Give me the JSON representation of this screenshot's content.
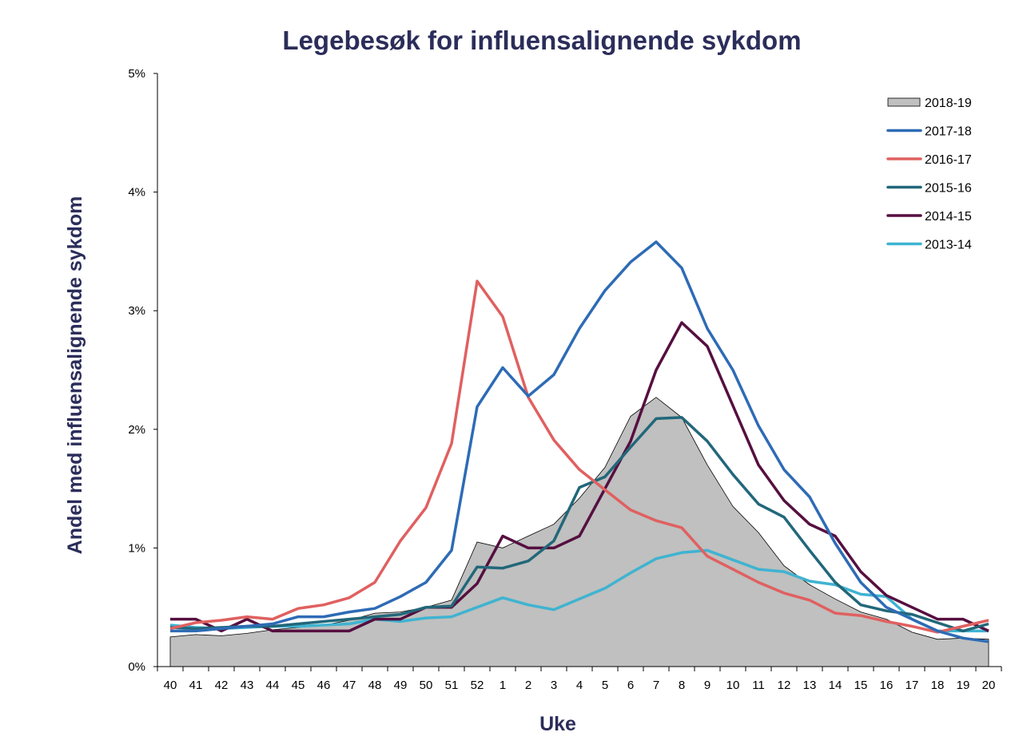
{
  "chart_data": {
    "type": "line",
    "title": "Legebesøk for influensalignende sykdom",
    "xlabel": "Uke",
    "ylabel": "Andel med influensalignende sykdom",
    "ylim": [
      0,
      5
    ],
    "yticks": [
      "0%",
      "1%",
      "2%",
      "3%",
      "4%",
      "5%"
    ],
    "grid": false,
    "legend_position": "top-right",
    "categories": [
      "40",
      "41",
      "42",
      "43",
      "44",
      "45",
      "46",
      "47",
      "48",
      "49",
      "50",
      "51",
      "52",
      "1",
      "2",
      "3",
      "4",
      "5",
      "6",
      "7",
      "8",
      "9",
      "10",
      "11",
      "12",
      "13",
      "14",
      "15",
      "16",
      "17",
      "18",
      "19",
      "20"
    ],
    "series": [
      {
        "name": "2018-19",
        "kind": "area",
        "color": "#bfc0bf",
        "values": [
          0.25,
          0.27,
          0.26,
          0.28,
          0.31,
          0.33,
          0.35,
          0.39,
          0.45,
          0.46,
          0.5,
          0.56,
          1.05,
          1.0,
          1.1,
          1.2,
          1.42,
          1.68,
          2.11,
          2.27,
          2.1,
          1.7,
          1.35,
          1.13,
          0.85,
          0.69,
          0.57,
          0.46,
          0.4,
          0.29,
          0.23,
          0.24,
          0.23
        ]
      },
      {
        "name": "2017-18",
        "kind": "line",
        "color": "#2e6bb5",
        "values": [
          0.3,
          0.3,
          0.32,
          0.34,
          0.36,
          0.42,
          0.42,
          0.46,
          0.49,
          0.59,
          0.71,
          0.98,
          2.19,
          2.52,
          2.28,
          2.46,
          2.85,
          3.17,
          3.41,
          3.58,
          3.36,
          2.85,
          2.5,
          2.03,
          1.66,
          1.43,
          1.04,
          0.71,
          0.5,
          0.4,
          0.3,
          0.24,
          0.21
        ]
      },
      {
        "name": "2016-17",
        "kind": "line",
        "color": "#e06060",
        "values": [
          0.32,
          0.37,
          0.39,
          0.42,
          0.4,
          0.49,
          0.52,
          0.58,
          0.71,
          1.06,
          1.34,
          1.88,
          3.25,
          2.95,
          2.27,
          1.91,
          1.66,
          1.49,
          1.32,
          1.23,
          1.17,
          0.93,
          0.82,
          0.71,
          0.62,
          0.56,
          0.45,
          0.43,
          0.38,
          0.34,
          0.29,
          0.34,
          0.39
        ]
      },
      {
        "name": "2015-16",
        "kind": "line",
        "color": "#22677a",
        "values": [
          0.33,
          0.32,
          0.33,
          0.34,
          0.34,
          0.36,
          0.38,
          0.4,
          0.42,
          0.44,
          0.5,
          0.51,
          0.84,
          0.83,
          0.89,
          1.06,
          1.51,
          1.6,
          1.85,
          2.09,
          2.1,
          1.9,
          1.62,
          1.37,
          1.26,
          0.98,
          0.71,
          0.52,
          0.47,
          0.44,
          0.37,
          0.3,
          0.36
        ]
      },
      {
        "name": "2014-15",
        "kind": "line",
        "color": "#560f40",
        "values": [
          0.4,
          0.4,
          0.3,
          0.4,
          0.3,
          0.3,
          0.3,
          0.3,
          0.4,
          0.4,
          0.5,
          0.5,
          0.7,
          1.1,
          1.0,
          1.0,
          1.1,
          1.5,
          1.9,
          2.5,
          2.9,
          2.7,
          2.2,
          1.7,
          1.4,
          1.2,
          1.1,
          0.8,
          0.6,
          0.5,
          0.4,
          0.4,
          0.3
        ]
      },
      {
        "name": "2013-14",
        "kind": "line",
        "color": "#3fb3d1",
        "values": [
          0.35,
          0.33,
          0.32,
          0.33,
          0.34,
          0.34,
          0.35,
          0.36,
          0.4,
          0.38,
          0.41,
          0.42,
          0.5,
          0.58,
          0.52,
          0.48,
          0.57,
          0.66,
          0.79,
          0.91,
          0.96,
          0.98,
          0.9,
          0.82,
          0.8,
          0.72,
          0.69,
          0.61,
          0.59,
          0.4,
          0.3,
          0.3,
          0.3
        ]
      }
    ]
  }
}
